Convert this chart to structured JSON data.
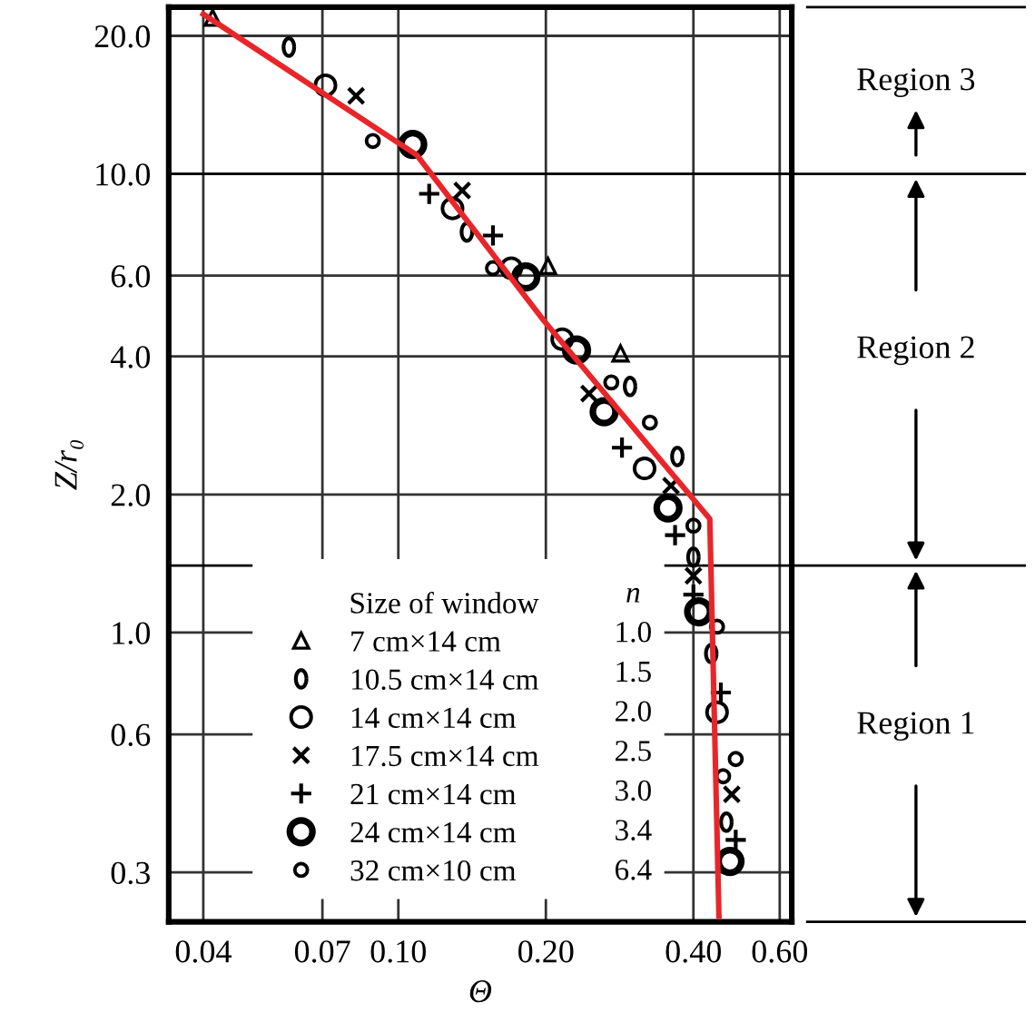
{
  "chart_data": {
    "type": "scatter",
    "xlabel": "Θ",
    "ylabel": "Z/r₀",
    "legend_title": "Size of window",
    "log": "xy",
    "grid": true,
    "legend": "bottom left",
    "xlim": [
      0.034,
      0.635
    ],
    "ylim": [
      0.234,
      23.1
    ],
    "xticks": [
      0.04,
      0.07,
      {
        "value": 0.1,
        "label": "0.10"
      },
      {
        "value": 0.2,
        "label": "0.20"
      },
      {
        "value": 0.4,
        "label": "0.40"
      },
      {
        "value": 0.6,
        "label": "0.60"
      }
    ],
    "yticks": [
      0.3,
      0.6,
      {
        "value": 1,
        "label": "1.0"
      },
      {
        "value": 2,
        "label": "2.0"
      },
      {
        "value": 4,
        "label": "4.0"
      },
      {
        "value": 6,
        "label": "6.0"
      },
      {
        "value": 10,
        "label": "10.0"
      },
      {
        "value": 20,
        "label": "20.0"
      }
    ],
    "series": [
      {
        "name": "7 cm×14 cm",
        "color": "#000000",
        "marker": "triangle",
        "x": [
          0.0418,
          0.202,
          0.284
        ],
        "values": [
          21.9,
          6.3,
          4.06
        ]
      },
      {
        "name": "10.5 cm×14 cm",
        "color": "#000000",
        "x": [
          0.0598,
          0.138,
          0.297,
          0.371,
          0.4,
          0.435,
          0.467
        ],
        "values": [
          18.9,
          7.47,
          3.44,
          2.42,
          1.46,
          0.9,
          0.386
        ]
      },
      {
        "name": "14 cm×14 cm",
        "color": "#000000",
        "marker": "circle",
        "x": [
          0.071,
          0.129,
          0.17,
          0.216,
          0.318,
          0.447
        ],
        "values": [
          15.6,
          8.41,
          6.23,
          4.36,
          2.28,
          0.67
        ]
      },
      {
        "name": "17.5 cm×14 cm",
        "color": "#000000",
        "marker": "cross",
        "x": [
          0.082,
          0.135,
          0.245,
          0.36,
          0.4,
          0.479
        ],
        "values": [
          14.8,
          9.2,
          3.32,
          2.09,
          1.33,
          0.444
        ]
      },
      {
        "name": "21 cm×14 cm",
        "color": "#000000",
        "marker": "plus",
        "x": [
          0.1156,
          0.156,
          0.286,
          0.367,
          0.4,
          0.455,
          0.488
        ],
        "values": [
          9.05,
          7.34,
          2.53,
          1.63,
          1.21,
          0.74,
          0.353
        ]
      },
      {
        "name": "24 cm×14 cm",
        "color": "#000000",
        "x": [
          0.107,
          0.182,
          0.231,
          0.263,
          0.355,
          0.41,
          0.475
        ],
        "values": [
          11.6,
          5.96,
          4.13,
          3.03,
          1.87,
          1.11,
          0.317
        ]
      },
      {
        "name": "32 cm×10 cm",
        "color": "#000000",
        "x": [
          0.0887,
          0.156,
          0.272,
          0.326,
          0.4,
          0.447,
          0.488,
          0.46
        ],
        "values": [
          11.8,
          6.23,
          3.51,
          2.87,
          1.71,
          1.03,
          0.53,
          0.486
        ]
      },
      {
        "type": "line",
        "color": "#e8262a",
        "marker": "none",
        "line_style": "solid",
        "x": [
          0.04,
          0.109,
          0.198,
          0.432,
          0.451
        ],
        "values": [
          22.3,
          11.0,
          4.79,
          1.77,
          0.241
        ]
      }
    ],
    "annotations": [
      "n",
      "1.0",
      "1.5",
      "2.0",
      "2.5",
      "3.0",
      "3.4",
      "6.4",
      "Region 3",
      "Region 2",
      "Region 1"
    ],
    "ref_lines": [
      {
        "axis": "y",
        "value": 10,
        "color": "#000000"
      },
      {
        "axis": "y",
        "value": 1.4,
        "color": "#000000"
      }
    ]
  }
}
